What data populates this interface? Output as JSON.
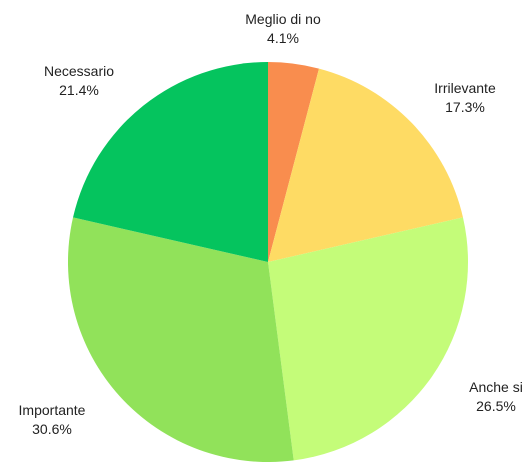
{
  "chart_data": {
    "type": "pie",
    "title": "",
    "start_angle_deg": 0,
    "direction": "clockwise",
    "slices": [
      {
        "label": "Meglio di no",
        "value": 4.1,
        "value_label": "4.1%",
        "color": "#F98D4E"
      },
      {
        "label": "Irrilevante",
        "value": 17.3,
        "value_label": "17.3%",
        "color": "#FEDB64"
      },
      {
        "label": "Anche si",
        "value": 26.5,
        "value_label": "26.5%",
        "color": "#C4FC79"
      },
      {
        "label": "Importante",
        "value": 30.6,
        "value_label": "30.6%",
        "color": "#91E25A"
      },
      {
        "label": "Necessario",
        "value": 21.4,
        "value_label": "21.4%",
        "color": "#05C45E"
      }
    ]
  }
}
